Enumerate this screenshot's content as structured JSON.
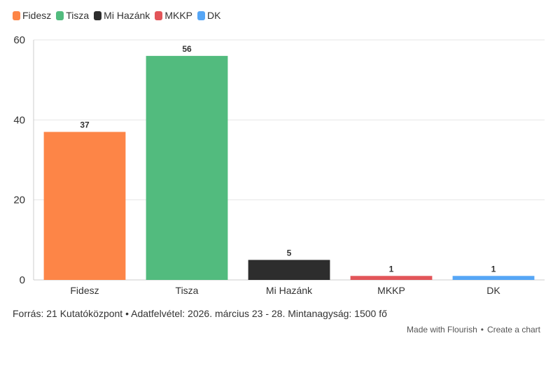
{
  "chart_data": {
    "type": "bar",
    "categories": [
      "Fidesz",
      "Tisza",
      "Mi Hazánk",
      "MKKP",
      "DK"
    ],
    "values": [
      37,
      56,
      5,
      1,
      1
    ],
    "colors": [
      "#fd8547",
      "#52bb7e",
      "#2d2d2d",
      "#e25559",
      "#56a6f6"
    ],
    "legend": [
      "Fidesz",
      "Tisza",
      "Mi Hazánk",
      "MKKP",
      "DK"
    ],
    "legend_position": "top-left",
    "yticks": [
      0,
      20,
      40,
      60
    ],
    "ylim": [
      0,
      60
    ],
    "grid": true,
    "title": "",
    "xlabel": "",
    "ylabel": ""
  },
  "footer": {
    "source": "Forrás: 21 Kutatóközpont • Adatfelvétel: 2026. március 23 - 28. Mintanagyság: 1500 fő",
    "made_with": "Made with Flourish",
    "separator": "•",
    "create_chart": "Create a chart"
  }
}
